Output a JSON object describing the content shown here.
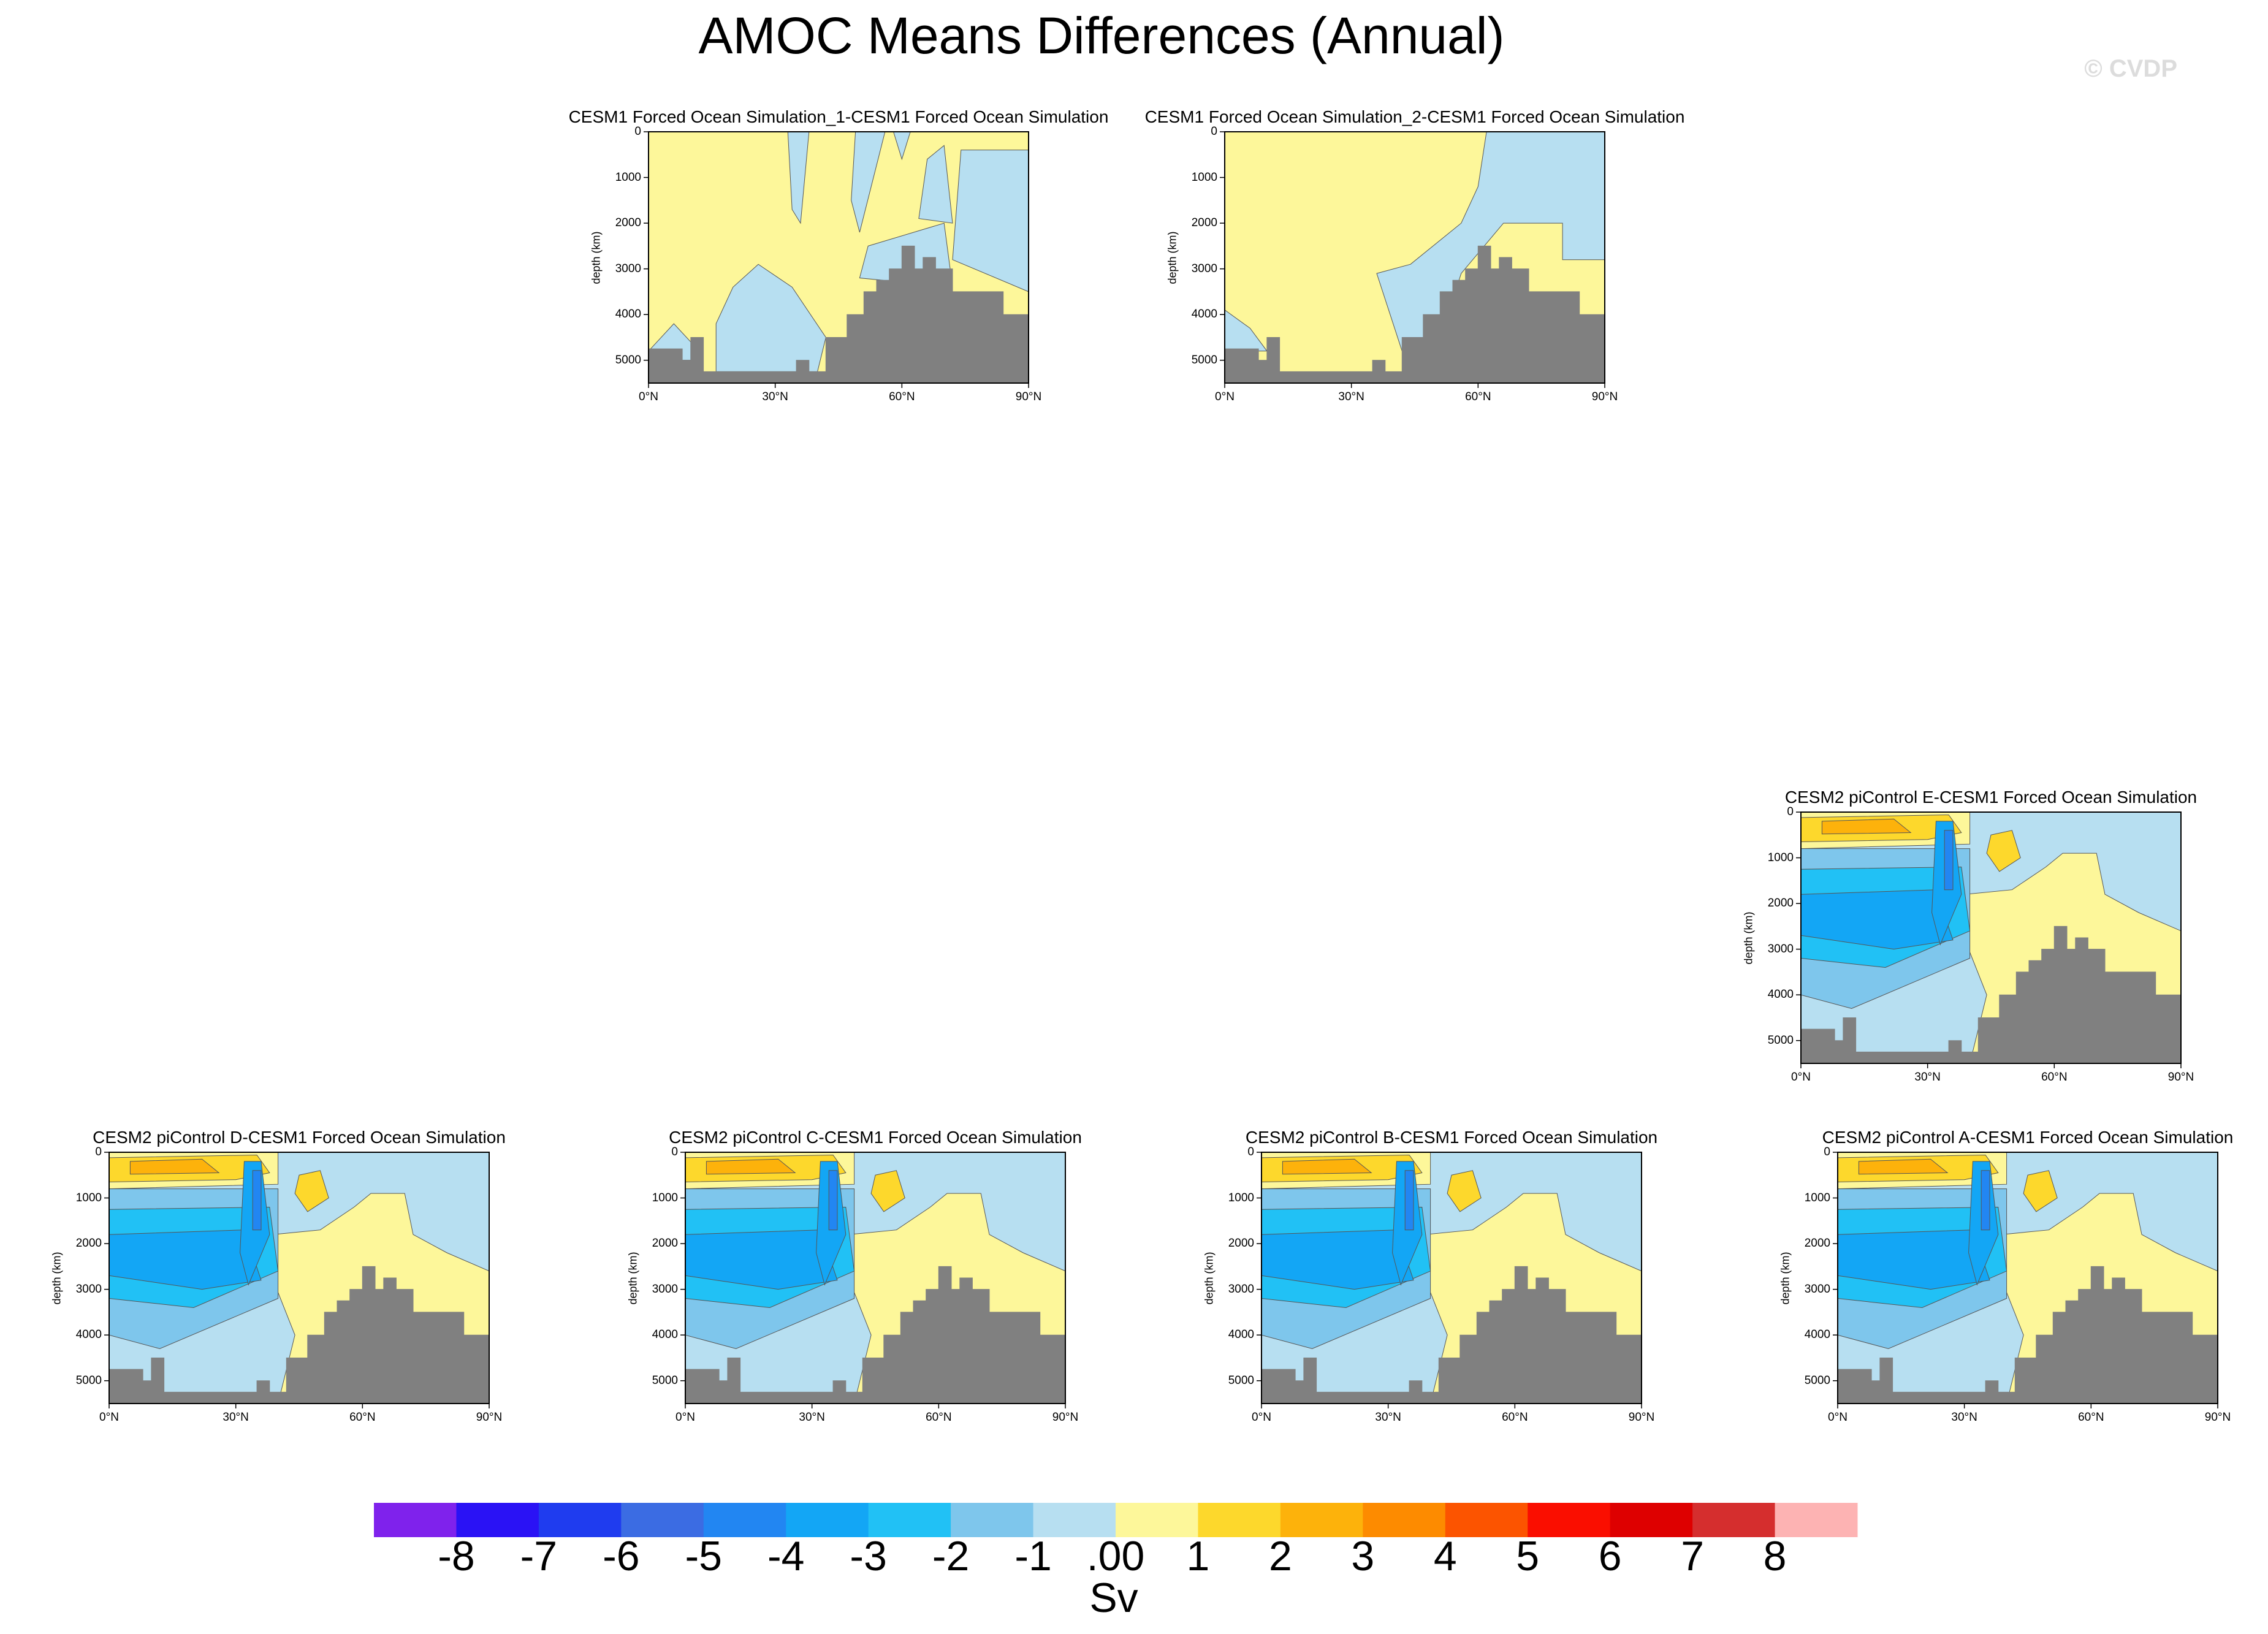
{
  "title": "AMOC Means Differences (Annual)",
  "copyright": "© CVDP",
  "y_axis_label": "depth (km)",
  "y_ticks": [
    "0",
    "1000",
    "2000",
    "3000",
    "4000",
    "5000"
  ],
  "x_ticks": [
    "0°N",
    "30°N",
    "60°N",
    "90°N"
  ],
  "panels": [
    {
      "title": "CESM1 Forced Ocean Simulation_1-CESM1 Forced Ocean Simulation",
      "style": "forced1"
    },
    {
      "title": "CESM1 Forced Ocean Simulation_2-CESM1 Forced Ocean Simulation",
      "style": "forced2"
    },
    {
      "title": "CESM2 piControl E-CESM1 Forced Ocean Simulation",
      "style": "picontrol"
    },
    {
      "title": "CESM2 piControl D-CESM1 Forced Ocean Simulation",
      "style": "picontrol"
    },
    {
      "title": "CESM2 piControl C-CESM1 Forced Ocean Simulation",
      "style": "picontrol"
    },
    {
      "title": "CESM2 piControl B-CESM1 Forced Ocean Simulation",
      "style": "picontrol"
    },
    {
      "title": "CESM2 piControl A-CESM1 Forced Ocean Simulation",
      "style": "picontrol"
    }
  ],
  "colorbar": {
    "units": "Sv",
    "labels": [
      "-8",
      "-7",
      "-6",
      "-5",
      "-4",
      "-3",
      "-2",
      "-1",
      ".00",
      "1",
      "2",
      "3",
      "4",
      "5",
      "6",
      "7",
      "8"
    ],
    "colors": [
      "#7f22ec",
      "#2a12f5",
      "#1f3cef",
      "#3b6ce3",
      "#2286f2",
      "#13a6f5",
      "#21c1f5",
      "#7ec6ec",
      "#b7dff1",
      "#fdf79a",
      "#fdd82c",
      "#fdb20b",
      "#fd8b00",
      "#fc5400",
      "#fa0e00",
      "#de0000",
      "#d52e2e",
      "#fdb3b3"
    ]
  },
  "chart_data": {
    "type": "heatmap",
    "title": "AMOC Means Differences (Annual)",
    "xlabel": "",
    "ylabel": "depth (km)",
    "xlim": [
      0,
      90
    ],
    "ylim": [
      5500,
      0
    ],
    "x_tick_values": [
      0,
      30,
      60,
      90
    ],
    "y_tick_values": [
      0,
      1000,
      2000,
      3000,
      4000,
      5000
    ],
    "units": "Sv",
    "contour_levels": [
      -8,
      -7,
      -6,
      -5,
      -4,
      -3,
      -2,
      -1,
      0,
      1,
      2,
      3,
      4,
      5,
      6,
      7,
      8
    ],
    "bathymetry_depth_by_latitude": [
      [
        0,
        4750
      ],
      [
        4,
        4750
      ],
      [
        8,
        5000
      ],
      [
        10,
        4500
      ],
      [
        13,
        5250
      ],
      [
        20,
        5250
      ],
      [
        30,
        5250
      ],
      [
        35,
        5000
      ],
      [
        38,
        5250
      ],
      [
        42,
        4500
      ],
      [
        47,
        4000
      ],
      [
        51,
        3500
      ],
      [
        54,
        3250
      ],
      [
        57,
        3000
      ],
      [
        60,
        2500
      ],
      [
        63,
        3000
      ],
      [
        65,
        2750
      ],
      [
        68,
        3000
      ],
      [
        72,
        3500
      ],
      [
        80,
        3500
      ],
      [
        84,
        4000
      ],
      [
        90,
        4000
      ]
    ],
    "series": [
      {
        "name": "CESM1 Forced Ocean Simulation_1-CESM1 Forced Ocean Simulation",
        "range_sv": [
          -1,
          1
        ]
      },
      {
        "name": "CESM1 Forced Ocean Simulation_2-CESM1 Forced Ocean Simulation",
        "range_sv": [
          -1,
          1
        ]
      },
      {
        "name": "CESM2 piControl E-CESM1 Forced Ocean Simulation",
        "range_sv": [
          -5,
          3
        ]
      },
      {
        "name": "CESM2 piControl D-CESM1 Forced Ocean Simulation",
        "range_sv": [
          -5,
          3
        ]
      },
      {
        "name": "CESM2 piControl C-CESM1 Forced Ocean Simulation",
        "range_sv": [
          -5,
          3
        ]
      },
      {
        "name": "CESM2 piControl B-CESM1 Forced Ocean Simulation",
        "range_sv": [
          -5,
          3
        ]
      },
      {
        "name": "CESM2 piControl A-CESM1 Forced Ocean Simulation",
        "range_sv": [
          -5,
          3
        ]
      }
    ]
  }
}
